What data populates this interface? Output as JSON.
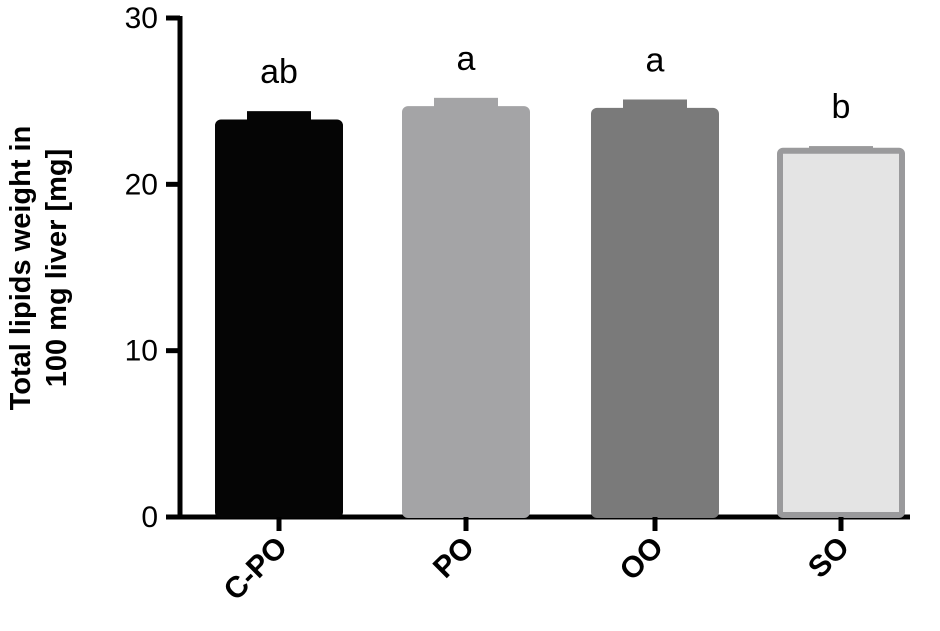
{
  "chart_data": {
    "type": "bar",
    "title": "",
    "xlabel": "",
    "ylabel_lines": [
      "Total lipids weight in",
      "100 mg liver [mg]"
    ],
    "categories": [
      "C-PO",
      "PO",
      "OO",
      "SO"
    ],
    "values": [
      23.9,
      24.7,
      24.6,
      22.2
    ],
    "error_upper": [
      24.4,
      25.2,
      25.1,
      22.3
    ],
    "significance_labels": [
      "ab",
      "a",
      "a",
      "b"
    ],
    "colors": [
      "#050505",
      "#a4a4a6",
      "#7a7a7a",
      "#e4e4e4"
    ],
    "edge_colors": [
      "#050505",
      "#a4a4a6",
      "#7a7a7a",
      "#9a9a9c"
    ],
    "ylim": [
      0,
      30
    ],
    "yticks": [
      0,
      10,
      20,
      30
    ],
    "grid": false
  }
}
